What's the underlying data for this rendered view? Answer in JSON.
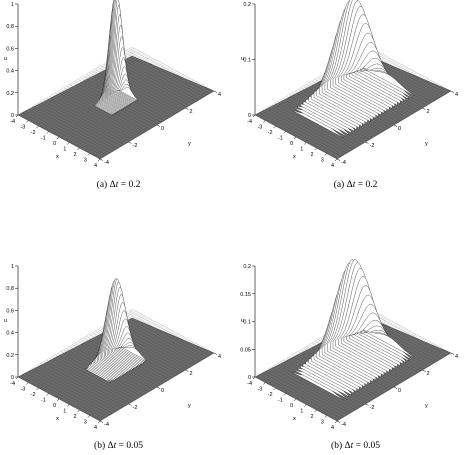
{
  "chart_data": [
    {
      "type": "surface",
      "caption": {
        "label": "(a)",
        "symbol": "Δ",
        "var": "t",
        "rest": " = 0.2"
      },
      "axes": {
        "x": "x",
        "y": "y",
        "z": "u"
      },
      "xlim": [
        -4,
        4
      ],
      "ylim": [
        -4,
        4
      ],
      "zlim": [
        0,
        1
      ],
      "zticks": [
        "0",
        "0.2",
        "0.4",
        "0.6",
        "0.8",
        "1"
      ],
      "xticks": [
        "-4",
        "-3",
        "-2",
        "-1",
        "0",
        "1",
        "2",
        "3",
        "4"
      ],
      "yticks": [
        "-4",
        "-2",
        "0",
        "2",
        "4"
      ],
      "peak": 1.0,
      "width": 0.22
    },
    {
      "type": "surface",
      "caption": {
        "label": "(a)",
        "symbol": "Δ",
        "var": "t",
        "rest": " = 0.2"
      },
      "axes": {
        "x": "x",
        "y": "y",
        "z": "u"
      },
      "xlim": [
        -4,
        4
      ],
      "ylim": [
        -4,
        4
      ],
      "zlim": [
        0,
        0.2
      ],
      "zticks": [
        "0",
        "0.1",
        "0.2"
      ],
      "xticks": [
        "-4",
        "-3",
        "-2",
        "-1",
        "0",
        "1",
        "2",
        "3",
        "4"
      ],
      "yticks": [
        "-4",
        "-2",
        "0",
        "2",
        "4"
      ],
      "peak": 0.19,
      "width": 0.62
    },
    {
      "type": "surface",
      "caption": {
        "label": "(b)",
        "symbol": "Δ",
        "var": "t",
        "rest": " = 0.05"
      },
      "axes": {
        "x": "x",
        "y": "y",
        "z": "u"
      },
      "xlim": [
        -4,
        4
      ],
      "ylim": [
        -4,
        4
      ],
      "zlim": [
        0,
        1
      ],
      "zticks": [
        "0",
        "0.2",
        "0.4",
        "0.6",
        "0.8",
        "1"
      ],
      "xticks": [
        "-4",
        "-3",
        "-2",
        "-1",
        "0",
        "1",
        "2",
        "3",
        "4"
      ],
      "yticks": [
        "-4",
        "-2",
        "0",
        "2",
        "4"
      ],
      "peak": 0.78,
      "width": 0.32
    },
    {
      "type": "surface",
      "caption": {
        "label": "(b)",
        "symbol": "Δ",
        "var": "t",
        "rest": " = 0.05"
      },
      "axes": {
        "x": "x",
        "y": "y",
        "z": "u"
      },
      "xlim": [
        -4,
        4
      ],
      "ylim": [
        -4,
        4
      ],
      "zlim": [
        0,
        0.2
      ],
      "zticks": [
        "0",
        "0.05",
        "0.1",
        "0.15",
        "0.2"
      ],
      "xticks": [
        "-4",
        "-3",
        "-2",
        "-1",
        "0",
        "1",
        "2",
        "3",
        "4"
      ],
      "yticks": [
        "-4",
        "-2",
        "0",
        "2",
        "4"
      ],
      "peak": 0.19,
      "width": 0.62
    }
  ]
}
